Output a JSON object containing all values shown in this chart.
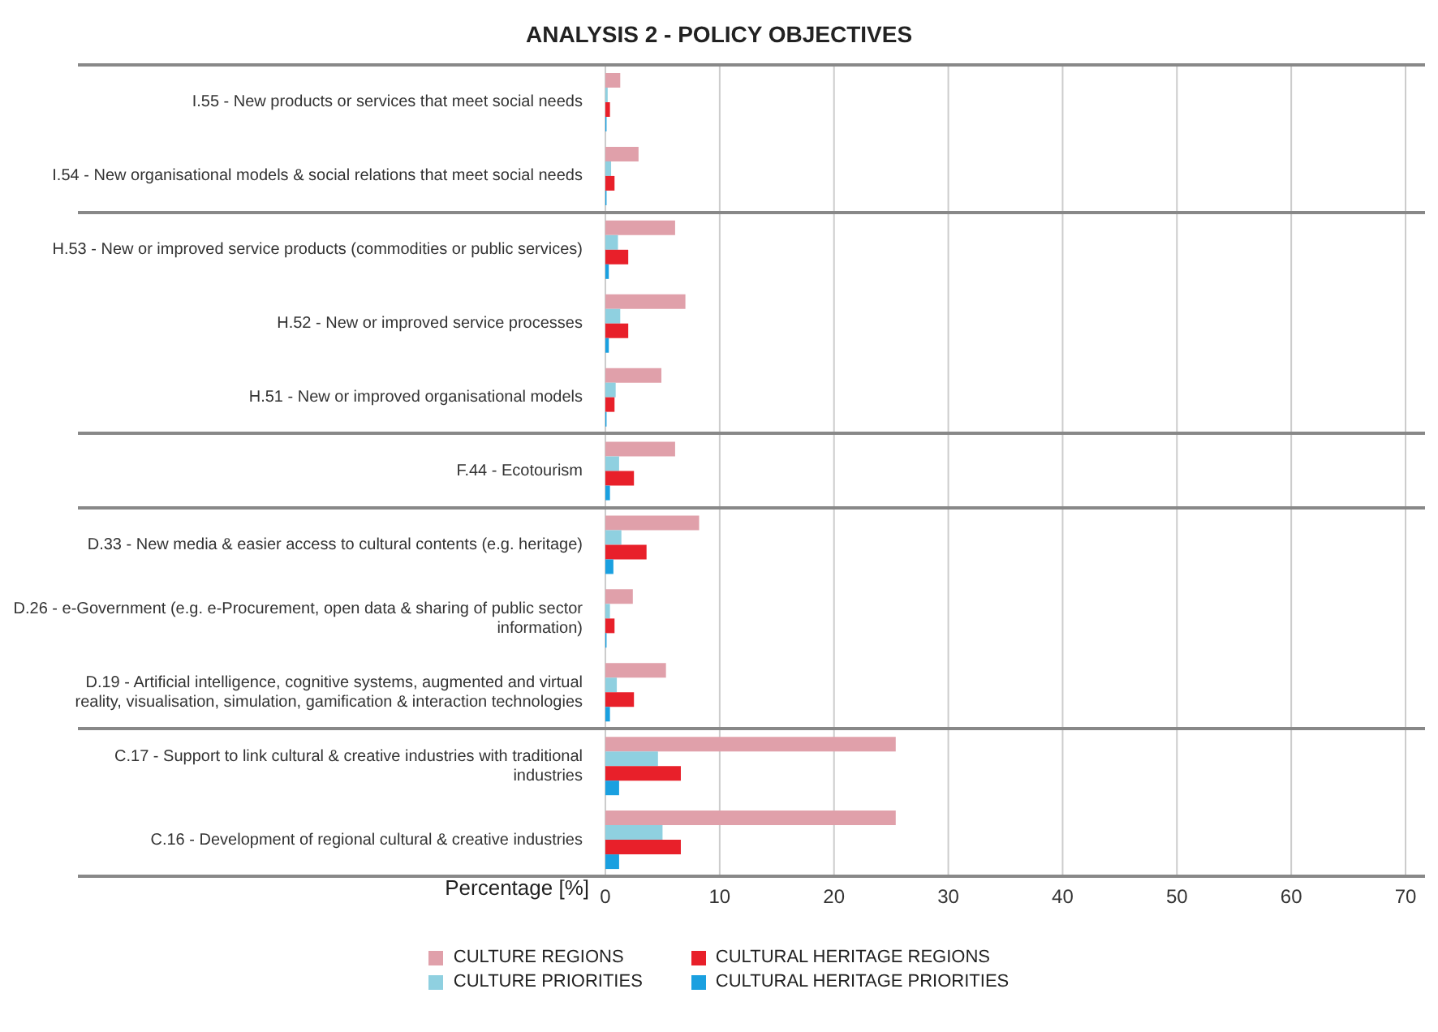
{
  "chart_data": {
    "type": "bar",
    "orientation": "horizontal",
    "title": "ANALYSIS 2 - POLICY OBJECTIVES",
    "xlabel": "Percentage [%]",
    "categories": [
      "I.55 - New products or services that meet social needs",
      "I.54 - New organisational models & social relations that meet social needs",
      "H.53 - New or improved service products (commodities or public services)",
      "H.52 - New or improved service processes",
      "H.51 - New or improved organisational models",
      "F.44 - Ecotourism",
      "D.33 - New media & easier access to cultural contents (e.g. heritage)",
      "D.26 - e-Government (e.g. e-Procurement, open data & sharing of public sector information)",
      "D.19 - Artificial intelligence, cognitive systems, augmented and virtual reality, visualisation, simulation, gamification &  interaction technologies",
      "C.17 - Support to link cultural & creative industries with traditional industries",
      "C.16 - Development of regional cultural & creative industries"
    ],
    "series": [
      {
        "name": "CULTURE REGIONS",
        "color": "#e0a0aa",
        "values": [
          1.3,
          2.9,
          6.1,
          7.0,
          4.9,
          6.1,
          8.2,
          2.4,
          5.3,
          25.4,
          25.4
        ]
      },
      {
        "name": "CULTURE PRIORITIES",
        "color": "#8fd0e0",
        "values": [
          0.2,
          0.5,
          1.1,
          1.3,
          0.9,
          1.2,
          1.4,
          0.4,
          1.0,
          4.6,
          5.0
        ]
      },
      {
        "name": "CULTURAL HERITAGE REGIONS",
        "color": "#e8202a",
        "values": [
          0.4,
          0.8,
          2.0,
          2.0,
          0.8,
          2.5,
          3.6,
          0.8,
          2.5,
          6.6,
          6.6
        ]
      },
      {
        "name": "CULTURAL HERITAGE PRIORITIES",
        "color": "#1aa0e0",
        "values": [
          0.1,
          0.1,
          0.3,
          0.3,
          0.1,
          0.4,
          0.7,
          0.1,
          0.4,
          1.2,
          1.2
        ]
      }
    ],
    "xlim": [
      0,
      70
    ],
    "xticks": [
      0,
      10,
      20,
      30,
      40,
      50,
      60,
      70
    ],
    "grid": "x",
    "legend": "bottom"
  }
}
